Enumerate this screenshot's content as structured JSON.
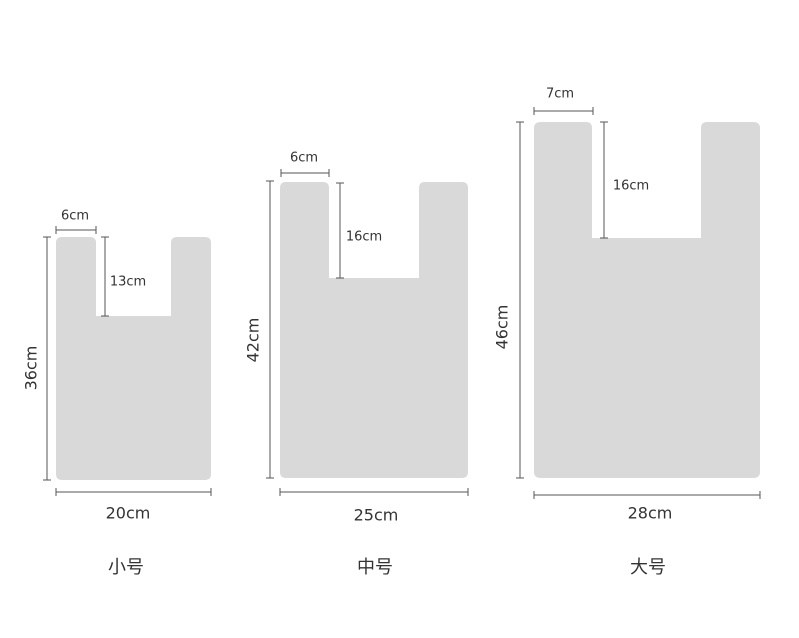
{
  "bags": [
    {
      "name": "小号",
      "width": "20cm",
      "height": "36cm",
      "handle_width": "6cm",
      "handle_depth": "13cm"
    },
    {
      "name": "中号",
      "width": "25cm",
      "height": "42cm",
      "handle_width": "6cm",
      "handle_depth": "16cm"
    },
    {
      "name": "大号",
      "width": "28cm",
      "height": "46cm",
      "handle_width": "7cm",
      "handle_depth": "16cm"
    }
  ]
}
